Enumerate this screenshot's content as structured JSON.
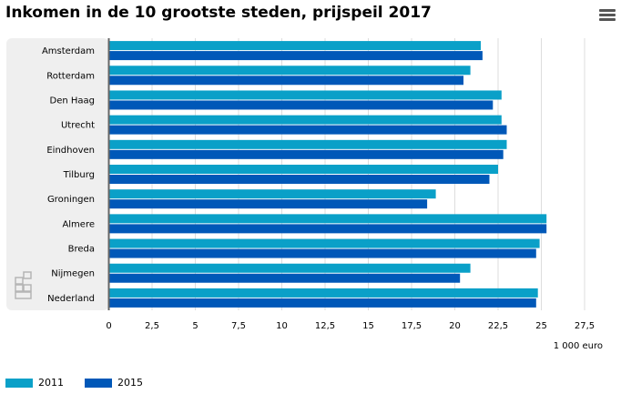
{
  "title": "Inkomen in de 10 grootste steden, prijspeil 2017",
  "menu_icon": "hamburger-menu-icon",
  "logo_icon": "cbs-logo-icon",
  "colors": {
    "series_2011": "#0aa0c8",
    "series_2015": "#0058b8",
    "panel_bg": "#efefef",
    "grid": "#dddddd",
    "axis": "#666666"
  },
  "chart_data": {
    "type": "bar",
    "orientation": "horizontal",
    "categories": [
      "Amsterdam",
      "Rotterdam",
      "Den Haag",
      "Utrecht",
      "Eindhoven",
      "Tilburg",
      "Groningen",
      "Almere",
      "Breda",
      "Nijmegen",
      "Nederland"
    ],
    "series": [
      {
        "name": "2011",
        "values": [
          21.5,
          20.9,
          22.7,
          22.7,
          23.0,
          22.5,
          18.9,
          25.3,
          24.9,
          20.9,
          24.8
        ]
      },
      {
        "name": "2015",
        "values": [
          21.6,
          20.5,
          22.2,
          23.0,
          22.8,
          22.0,
          18.4,
          25.3,
          24.7,
          20.3,
          24.7
        ]
      }
    ],
    "xlabel": "1 000 euro",
    "xlim": [
      0,
      27.5
    ],
    "xticks": [
      "0",
      "2,5",
      "5",
      "7,5",
      "10",
      "12,5",
      "15",
      "17,5",
      "20",
      "22,5",
      "25",
      "27,5"
    ],
    "grid": true,
    "legend_position": "bottom-left"
  }
}
